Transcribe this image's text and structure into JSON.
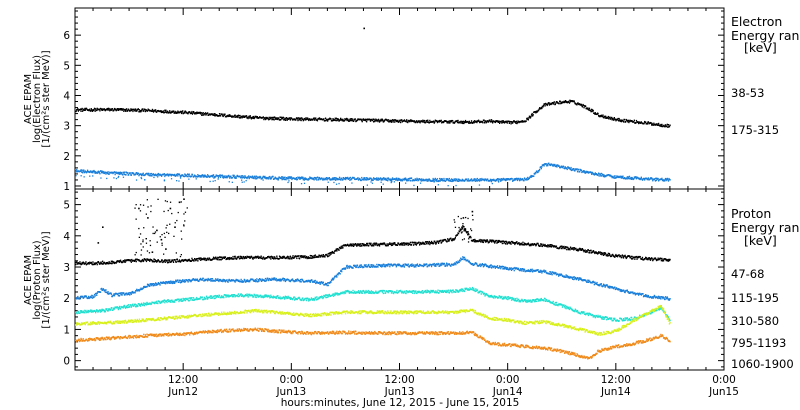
{
  "colors": {
    "black": "#000000",
    "blue": "#1a7fd9",
    "cyan": "#1fe0d0",
    "yellow": "#d8f01a",
    "orange": "#f08a1a"
  },
  "xaxis": {
    "title": "hours:minutes, June 12, 2015 - June 15, 2015",
    "ticks": [
      {
        "t": 12,
        "time": "12:00",
        "date": "Jun12"
      },
      {
        "t": 24,
        "time": "0:00",
        "date": "Jun13"
      },
      {
        "t": 36,
        "time": "12:00",
        "date": "Jun13"
      },
      {
        "t": 48,
        "time": "0:00",
        "date": "Jun14"
      },
      {
        "t": 60,
        "time": "12:00",
        "date": "Jun14"
      },
      {
        "t": 72,
        "time": "0:00",
        "date": "Jun15"
      }
    ]
  },
  "chart_data": [
    {
      "type": "scatter",
      "panel": "electron",
      "ylabel": [
        "ACE EPAM",
        "log(Electron Flux)",
        "[1/(cm²s ster MeV)]"
      ],
      "ylim": [
        0.9,
        6.9
      ],
      "xlim": [
        0,
        72
      ],
      "yticks": [
        1,
        2,
        3,
        4,
        5,
        6
      ],
      "legend_title": [
        "Electron",
        "Energy ran",
        "[keV]"
      ],
      "series": [
        {
          "name": "38-53",
          "color": "#000000",
          "points": [
            [
              0,
              3.52
            ],
            [
              4,
              3.53
            ],
            [
              8,
              3.5
            ],
            [
              12,
              3.44
            ],
            [
              16,
              3.35
            ],
            [
              20,
              3.26
            ],
            [
              24,
              3.22
            ],
            [
              28,
              3.2
            ],
            [
              32,
              3.18
            ],
            [
              36,
              3.15
            ],
            [
              40,
              3.13
            ],
            [
              44,
              3.12
            ],
            [
              46,
              3.15
            ],
            [
              47,
              3.12
            ],
            [
              48,
              3.1
            ],
            [
              49,
              3.12
            ],
            [
              50,
              3.18
            ],
            [
              51,
              3.45
            ],
            [
              52,
              3.68
            ],
            [
              53,
              3.74
            ],
            [
              54,
              3.78
            ],
            [
              55,
              3.8
            ],
            [
              56,
              3.7
            ],
            [
              57,
              3.55
            ],
            [
              58,
              3.35
            ],
            [
              60,
              3.2
            ],
            [
              62,
              3.13
            ],
            [
              64,
              3.06
            ],
            [
              66,
              2.98
            ]
          ]
        },
        {
          "name": "175-315",
          "color": "#1a7fd9",
          "points": [
            [
              0,
              1.5
            ],
            [
              4,
              1.43
            ],
            [
              8,
              1.38
            ],
            [
              12,
              1.35
            ],
            [
              16,
              1.32
            ],
            [
              20,
              1.28
            ],
            [
              24,
              1.25
            ],
            [
              28,
              1.24
            ],
            [
              32,
              1.23
            ],
            [
              36,
              1.22
            ],
            [
              40,
              1.2
            ],
            [
              44,
              1.2
            ],
            [
              48,
              1.2
            ],
            [
              50,
              1.22
            ],
            [
              51,
              1.4
            ],
            [
              52,
              1.72
            ],
            [
              53,
              1.7
            ],
            [
              54,
              1.62
            ],
            [
              56,
              1.5
            ],
            [
              58,
              1.38
            ],
            [
              60,
              1.3
            ],
            [
              62,
              1.26
            ],
            [
              64,
              1.22
            ],
            [
              66,
              1.2
            ]
          ]
        }
      ],
      "outliers": [
        [
          32,
          6.25
        ]
      ]
    },
    {
      "type": "scatter",
      "panel": "proton",
      "ylabel": [
        "ACE EPAM",
        "log(Proton Flux)",
        "[1/(cm²s ster MeV)]"
      ],
      "ylim": [
        -0.3,
        5.5
      ],
      "xlim": [
        0,
        72
      ],
      "yticks": [
        0,
        1,
        2,
        3,
        4,
        5
      ],
      "legend_title": [
        "Proton",
        "Energy ran",
        "[keV]"
      ],
      "series": [
        {
          "name": "47-68",
          "color": "#000000",
          "points": [
            [
              0,
              3.12
            ],
            [
              2,
              3.12
            ],
            [
              4,
              3.15
            ],
            [
              6,
              3.2
            ],
            [
              8,
              3.22
            ],
            [
              10,
              3.18
            ],
            [
              14,
              3.25
            ],
            [
              18,
              3.3
            ],
            [
              22,
              3.3
            ],
            [
              26,
              3.32
            ],
            [
              28,
              3.38
            ],
            [
              30,
              3.7
            ],
            [
              34,
              3.72
            ],
            [
              38,
              3.75
            ],
            [
              40,
              3.78
            ],
            [
              42,
              3.9
            ],
            [
              43,
              4.3
            ],
            [
              44,
              3.85
            ],
            [
              46,
              3.82
            ],
            [
              48,
              3.78
            ],
            [
              52,
              3.7
            ],
            [
              56,
              3.55
            ],
            [
              60,
              3.35
            ],
            [
              64,
              3.25
            ],
            [
              66,
              3.22
            ]
          ]
        },
        {
          "name": "115-195",
          "color": "#1a7fd9",
          "points": [
            [
              0,
              2.0
            ],
            [
              2,
              2.05
            ],
            [
              3,
              2.3
            ],
            [
              4,
              2.1
            ],
            [
              6,
              2.15
            ],
            [
              8,
              2.4
            ],
            [
              10,
              2.5
            ],
            [
              14,
              2.6
            ],
            [
              18,
              2.55
            ],
            [
              22,
              2.6
            ],
            [
              26,
              2.55
            ],
            [
              28,
              2.45
            ],
            [
              30,
              3.0
            ],
            [
              34,
              3.05
            ],
            [
              38,
              3.05
            ],
            [
              42,
              3.08
            ],
            [
              43,
              3.3
            ],
            [
              44,
              3.1
            ],
            [
              48,
              2.95
            ],
            [
              52,
              2.85
            ],
            [
              56,
              2.6
            ],
            [
              58,
              2.45
            ],
            [
              60,
              2.3
            ],
            [
              62,
              2.15
            ],
            [
              64,
              2.05
            ],
            [
              66,
              1.98
            ]
          ]
        },
        {
          "name": "310-580",
          "color": "#1fe0d0",
          "points": [
            [
              0,
              1.55
            ],
            [
              3,
              1.6
            ],
            [
              6,
              1.75
            ],
            [
              10,
              1.9
            ],
            [
              14,
              2.0
            ],
            [
              18,
              2.1
            ],
            [
              22,
              2.05
            ],
            [
              26,
              1.95
            ],
            [
              30,
              2.2
            ],
            [
              34,
              2.2
            ],
            [
              38,
              2.2
            ],
            [
              42,
              2.22
            ],
            [
              44,
              2.3
            ],
            [
              46,
              2.05
            ],
            [
              48,
              2.0
            ],
            [
              50,
              1.9
            ],
            [
              52,
              1.95
            ],
            [
              56,
              1.55
            ],
            [
              58,
              1.4
            ],
            [
              60,
              1.3
            ],
            [
              62,
              1.35
            ],
            [
              64,
              1.55
            ],
            [
              65,
              1.7
            ],
            [
              66,
              1.25
            ]
          ]
        },
        {
          "name": "795-1193",
          "color": "#d8f01a",
          "points": [
            [
              0,
              1.18
            ],
            [
              4,
              1.22
            ],
            [
              8,
              1.3
            ],
            [
              12,
              1.4
            ],
            [
              16,
              1.5
            ],
            [
              20,
              1.6
            ],
            [
              22,
              1.55
            ],
            [
              26,
              1.45
            ],
            [
              30,
              1.55
            ],
            [
              34,
              1.55
            ],
            [
              38,
              1.55
            ],
            [
              42,
              1.55
            ],
            [
              44,
              1.6
            ],
            [
              46,
              1.35
            ],
            [
              48,
              1.3
            ],
            [
              50,
              1.2
            ],
            [
              52,
              1.25
            ],
            [
              56,
              1.0
            ],
            [
              58,
              0.85
            ],
            [
              60,
              0.95
            ],
            [
              62,
              1.3
            ],
            [
              64,
              1.6
            ],
            [
              65,
              1.75
            ],
            [
              66,
              1.15
            ]
          ]
        },
        {
          "name": "1060-1900",
          "color": "#f08a1a",
          "points": [
            [
              0,
              0.65
            ],
            [
              4,
              0.72
            ],
            [
              8,
              0.8
            ],
            [
              12,
              0.85
            ],
            [
              16,
              0.95
            ],
            [
              20,
              1.0
            ],
            [
              22,
              0.95
            ],
            [
              26,
              0.88
            ],
            [
              30,
              0.9
            ],
            [
              34,
              0.88
            ],
            [
              38,
              0.88
            ],
            [
              42,
              0.88
            ],
            [
              44,
              0.9
            ],
            [
              46,
              0.55
            ],
            [
              48,
              0.5
            ],
            [
              50,
              0.45
            ],
            [
              52,
              0.4
            ],
            [
              54,
              0.3
            ],
            [
              56,
              0.15
            ],
            [
              57,
              0.05
            ],
            [
              58,
              0.3
            ],
            [
              60,
              0.45
            ],
            [
              62,
              0.55
            ],
            [
              64,
              0.7
            ],
            [
              65,
              0.8
            ],
            [
              66,
              0.6
            ]
          ]
        }
      ],
      "spikes": [
        [
          7,
          4.9
        ],
        [
          8,
          4.6
        ],
        [
          9,
          4.2
        ],
        [
          10,
          3.6
        ],
        [
          10.5,
          4.9
        ],
        [
          11,
          4.3
        ],
        [
          11.5,
          5.1
        ],
        [
          12,
          5.2
        ],
        [
          9.5,
          3.9
        ],
        [
          8.5,
          3.5
        ],
        [
          2.5,
          3.8
        ],
        [
          3,
          4.3
        ],
        [
          43,
          4.6
        ],
        [
          44,
          4.8
        ]
      ]
    }
  ]
}
